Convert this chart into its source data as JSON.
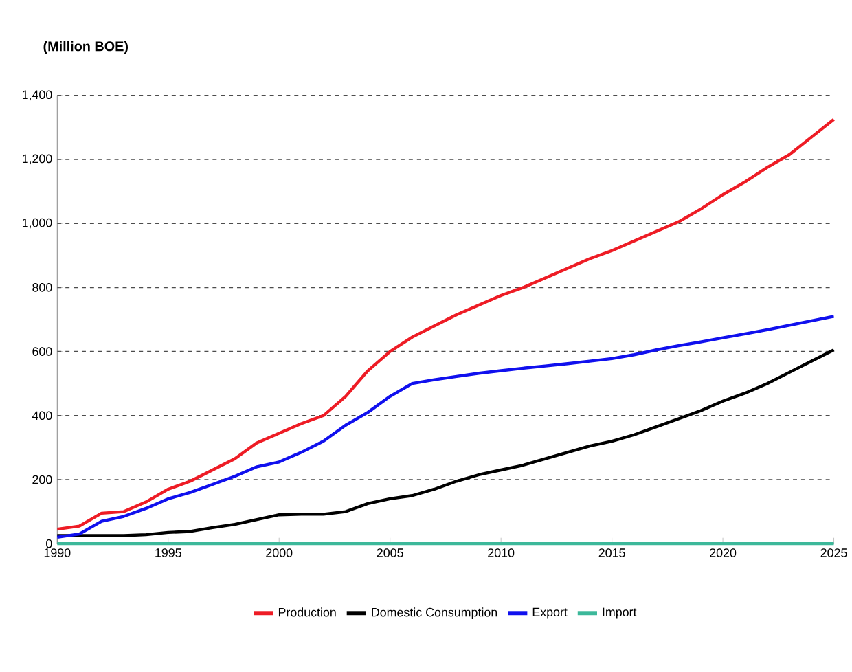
{
  "chart_data": {
    "type": "line",
    "ylabel": "(Million BOE)",
    "x": [
      1990,
      1991,
      1992,
      1993,
      1994,
      1995,
      1996,
      1997,
      1998,
      1999,
      2000,
      2001,
      2002,
      2003,
      2004,
      2005,
      2006,
      2007,
      2008,
      2009,
      2010,
      2011,
      2012,
      2013,
      2014,
      2015,
      2016,
      2017,
      2018,
      2019,
      2020,
      2021,
      2022,
      2023,
      2024,
      2025
    ],
    "series": [
      {
        "name": "Production",
        "color": "#ee1c25",
        "values": [
          45,
          55,
          95,
          100,
          130,
          170,
          195,
          230,
          265,
          315,
          345,
          375,
          400,
          460,
          540,
          600,
          645,
          680,
          715,
          745,
          775,
          800,
          830,
          860,
          890,
          915,
          945,
          975,
          1005,
          1045,
          1090,
          1130,
          1175,
          1215,
          1270,
          1325
        ]
      },
      {
        "name": "Domestic Consumption",
        "color": "#000000",
        "values": [
          25,
          25,
          25,
          25,
          28,
          35,
          38,
          50,
          60,
          75,
          90,
          92,
          92,
          100,
          125,
          140,
          150,
          170,
          195,
          215,
          230,
          245,
          265,
          285,
          305,
          320,
          340,
          365,
          390,
          415,
          445,
          470,
          500,
          535,
          570,
          605
        ]
      },
      {
        "name": "Export",
        "color": "#1010ee",
        "values": [
          20,
          30,
          70,
          85,
          110,
          140,
          160,
          185,
          210,
          240,
          255,
          285,
          320,
          370,
          410,
          460,
          500,
          512,
          522,
          532,
          540,
          548,
          555,
          562,
          570,
          578,
          590,
          605,
          618,
          630,
          643,
          655,
          668,
          682,
          696,
          710
        ]
      },
      {
        "name": "Import",
        "color": "#3cb89a",
        "values": [
          0,
          0,
          0,
          0,
          0,
          0,
          0,
          0,
          0,
          0,
          0,
          0,
          0,
          0,
          0,
          0,
          0,
          0,
          0,
          0,
          0,
          0,
          0,
          0,
          0,
          0,
          0,
          0,
          0,
          0,
          0,
          0,
          0,
          0,
          0,
          0
        ]
      }
    ],
    "xlim": [
      1990,
      2025
    ],
    "xticks": [
      1990,
      1995,
      2000,
      2005,
      2010,
      2015,
      2020,
      2025
    ],
    "ylim": [
      0,
      1400
    ],
    "yticks": [
      0,
      200,
      400,
      600,
      800,
      {
        "value": 1000,
        "label": "1,000"
      },
      {
        "value": 1200,
        "label": "1,200"
      },
      {
        "value": 1400,
        "label": "1,400"
      }
    ],
    "grid": "y",
    "legend": "bottom",
    "marker": "none",
    "line_style": "solid"
  }
}
